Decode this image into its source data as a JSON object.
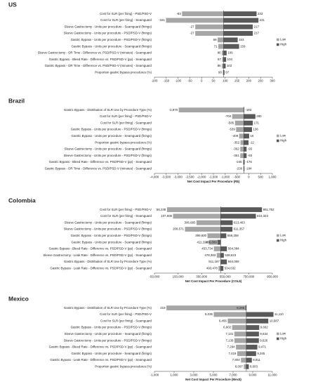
{
  "chart_data": [
    {
      "type": "tornado",
      "title": "US",
      "categories": [
        "Cost for SLR (per firing) - PSD/PSD-V",
        "Cost for SLR (per firing) - Seamguard",
        "Sleeve Gastrectomy - Units per procedure - Seamguard (firings)",
        "Sleeve Gastrectomy - Units per procedure - PSD/PSD-V (firings)",
        "Gastric Bypass - Units per procedure - PSD/PSD-V (firings)",
        "Gastric Bypass - Units per procedure - Seamguard (firings)",
        "Sleeve Gastrectomy - OR Time - Difference vs. PSD/PSD-V (minutes) - Seamguard",
        "Gastric Bypass - Bleed Rate - Difference vs. PSD/PSD-V (pp) - Seamguard",
        "Gastric Bypass - OR Time - Difference vs. PSD/PSD-V (minutes) - Seamguard",
        "Proportion gastric bypass procedures (%)"
      ],
      "series": [
        {
          "name": "Low",
          "color": "#a6a6a6",
          "values": [
            -83,
            -151,
            -27,
            -27,
            68,
            71,
            86,
            87,
            86,
            90
          ]
        },
        {
          "name": "High",
          "color": "#595959",
          "values": [
            233,
            241,
            217,
            217,
            153,
            159,
            106,
            104,
            102,
            97
          ]
        }
      ],
      "base_value": 93,
      "xlim": [
        -200,
        300
      ],
      "xticks": [
        -200,
        -150,
        -100,
        -50,
        0,
        50,
        100,
        150,
        200,
        250,
        300
      ],
      "legend": "right"
    },
    {
      "type": "tornado",
      "title": "Brazil",
      "categories": [
        "Gastric Bypass - Distribution of SLR Use by Procedure Type (%)",
        "Cost for SLR (per firing) - PSD/PSD-V",
        "Cost for SLR (per firing) - Seamguard",
        "Gastric Bypass - Units per procedure - PSD/PSD-V (firings)",
        "Gastric Bypass - Units per procedure - Seamguard (firings)",
        "Proportion gastric bypass procedures (%)",
        "Sleeve Gastrectomy - Units per procedure - Seamguard (firings)",
        "Sleeve Gastrectomy - Units per procedure - PSD/PSD-V (firings)",
        "Gastric Bypass - Bleed Rate - Difference vs. PSD/PSD-V (pp) - Seamguard",
        "Gastric Bypass - OR Time - Difference vs. PSD/PSD-V (minutes) - Seamguard"
      ],
      "series": [
        {
          "name": "Low",
          "color": "#a6a6a6",
          "values": [
            -2970,
            -704,
            -585,
            -539,
            -409,
            -352,
            -362,
            -361,
            -246,
            -230
          ],
          "value_labels": [
            "-2,970",
            "-704",
            "-585",
            "-539",
            "-409",
            "-352",
            "-362",
            "-361",
            "-246",
            "-230"
          ]
        },
        {
          "name": "High",
          "color": "#595959",
          "values": [
            -193,
            280,
            171,
            136,
            16,
            -12,
            -93,
            -93,
            -176,
            -184
          ]
        }
      ],
      "base_value": -210,
      "xlim": [
        -4000,
        1000
      ],
      "xticks": [
        {
          "value": -4000,
          "label": "-4,000"
        },
        {
          "value": -3500,
          "label": "-3,500"
        },
        {
          "value": -3000,
          "label": "-3,000"
        },
        {
          "value": -2500,
          "label": "-2,500"
        },
        {
          "value": -2000,
          "label": "-2,000"
        },
        {
          "value": -1500,
          "label": "-1,500"
        },
        {
          "value": -1000,
          "label": "-1,000"
        },
        -500,
        0,
        500,
        {
          "value": 1000,
          "label": "1,000"
        }
      ],
      "xlabel": "Net Cost Impact Per Procedure (R$)",
      "legend": "right"
    },
    {
      "type": "tornado",
      "title": "Colombia",
      "categories": [
        "Cost for SLR (per firing) - PSD/PSD-V",
        "Cost for SLR (per firing) - Seamguard",
        "Sleeve Gastrectomy - Units per procedure - Seamguard (firings)",
        "Sleeve Gastrectomy - Units per procedure - PSD/PSD-V (firings)",
        "Gastric Bypass - Units per procedure - PSD/PSD-V (firings)",
        "Gastric Bypass - Units per procedure - Seamguard (firings)",
        "Gastric Bypass - Bleed Rate - Difference vs. PSD/PSD-V (pp) - Seamguard",
        "Sleeve Gastrectomy - Leak Rate - Difference vs. PSD/PSD-V (pp) - Seamguard",
        "Gastric Bypass - Distribution of SLR Use by Procedure Type (%)",
        "Gastric Bypass - Leak Rate - Difference vs. PSD/PSD-V (pp) - Seamguard"
      ],
      "series": [
        {
          "name": "Low",
          "color": "#a6a6a6",
          "values": [
            56348,
            107808,
            306685,
            208571,
            399830,
            411320,
            453734,
            478383,
            511187,
            493478
          ],
          "value_labels": [
            "56,348",
            "107,808",
            "306,685",
            "208,571",
            "399,830",
            "411,320",
            "453,734",
            "478,383",
            "511,187",
            "493,478"
          ]
        },
        {
          "name": "High",
          "color": "#595959",
          "values": [
            861762,
            810323,
            613403,
            611357,
            559259,
            486809,
            564384,
            538623,
            564059,
            534632
          ],
          "value_labels": [
            "861,762",
            "810,323",
            "613,403",
            "611,357",
            "559,259",
            "486,809",
            "564,384",
            "538,623",
            "564,059",
            "534,632"
          ]
        }
      ],
      "base_value": 512000,
      "xlim": [
        -50000,
        950000
      ],
      "xticks": [
        {
          "value": -50000,
          "label": "-50,000"
        },
        {
          "value": 150000,
          "label": "150,000"
        },
        {
          "value": 350000,
          "label": "350,000"
        },
        {
          "value": 550000,
          "label": "550,000"
        },
        {
          "value": 750000,
          "label": "750,000"
        },
        {
          "value": 950000,
          "label": "950,000"
        }
      ],
      "xlabel": "Net Cost Impact Per Procedure (COL$)",
      "legend": "right"
    },
    {
      "type": "tornado",
      "title": "Mexico",
      "categories": [
        "Gastric Bypass - Distribution of SLR Use by Procedure Type (%)",
        "Cost for SLR (per firing) - PSD/PSD-V",
        "Cost for SLR (per firing) - Seamguard",
        "Gastric Bypass - Units per procedure - PSD/PSD-V (firings)",
        "Sleeve Gastrectomy - Units per procedure - Seamguard (firings)",
        "Sleeve Gastrectomy - Units per procedure - PSD/PSD-V (firings)",
        "Gastric Bypass - Bleed Rate - Difference vs. PSD/PSD-V (pp) - Seamguard",
        "Gastric Bypass - Units per procedure - Seamguard (firings)",
        "Gastric Bypass - Leak Rate - Difference vs. PSD/PSD-V (pp) - Seamguard",
        "Proportion gastric bypass procedures (%)"
      ],
      "series": [
        {
          "name": "Low",
          "color": "#a6a6a6",
          "values": [
            219,
            5035,
            6456,
            6902,
            7131,
            7139,
            7294,
            7419,
            7804,
            8097
          ],
          "value_labels": [
            "219",
            "5,035",
            "6,456",
            "6,902",
            "7,131",
            "7,139",
            "7,294",
            "7,419",
            "7,804",
            "8,097"
          ]
        },
        {
          "name": "High",
          "color": "#595959",
          "values": [
            8266,
            11110,
            10587,
            9662,
            9634,
            9626,
            9471,
            9345,
            8911,
            8603
          ],
          "value_labels": [
            "8,266",
            "11,110",
            "10,587",
            "9,662",
            "9,634",
            "9,626",
            "9,471",
            "9,345",
            "8,911",
            "8,603"
          ]
        }
      ],
      "base_value": 8350,
      "xlim": [
        -1000,
        11000
      ],
      "xticks": [
        {
          "value": -1000,
          "label": "-1,000"
        },
        {
          "value": 1000,
          "label": "1,000"
        },
        {
          "value": 3000,
          "label": "3,000"
        },
        {
          "value": 5000,
          "label": "5,000"
        },
        {
          "value": 7000,
          "label": "7,000"
        },
        {
          "value": 9000,
          "label": "9,000"
        },
        {
          "value": 11000,
          "label": "11,000"
        }
      ],
      "xlabel": "Net Cost Impact Per Procedure (Mex$)",
      "legend": "right"
    }
  ]
}
